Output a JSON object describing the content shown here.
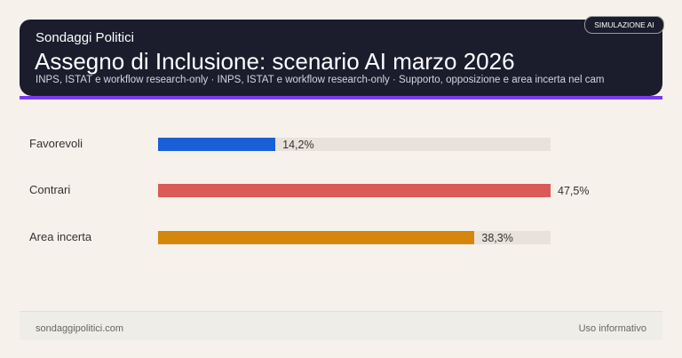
{
  "header": {
    "brand": "Sondaggi Politici",
    "title": "Assegno di Inclusione: scenario AI marzo 2026",
    "subtitle": "INPS, ISTAT e workflow research-only · INPS, ISTAT e workflow research-only · Supporto, opposizione e area incerta nel cam",
    "badge": "SIMULAZIONE AI"
  },
  "chart_data": {
    "type": "bar",
    "orientation": "horizontal",
    "categories": [
      "Favorevoli",
      "Contrari",
      "Area incerta"
    ],
    "values": [
      14.2,
      47.5,
      38.3
    ],
    "value_labels": [
      "14,2%",
      "47,5%",
      "38,3%"
    ],
    "colors": [
      "#1a5fd6",
      "#db5a57",
      "#d4870c"
    ],
    "track_color": "#e8e2da",
    "xlim": [
      0,
      47.5
    ]
  },
  "footer": {
    "left": "sondaggipolitici.com",
    "right": "Uso informativo"
  }
}
